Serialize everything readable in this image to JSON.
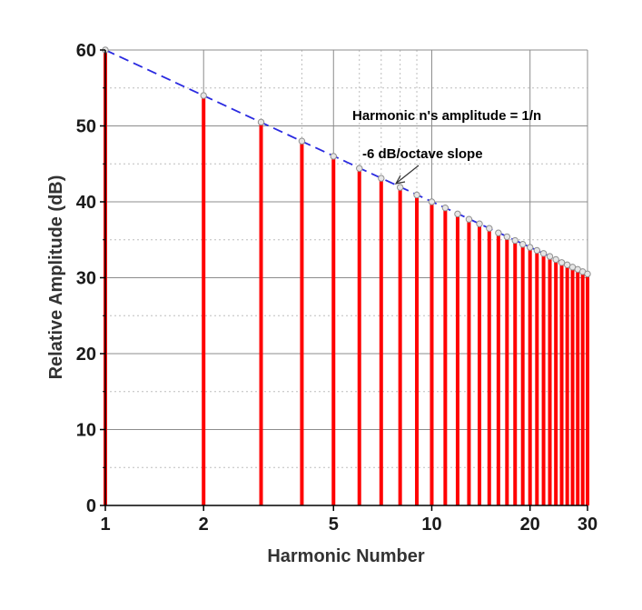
{
  "chart_data": {
    "type": "bar",
    "subtype": "stem",
    "x_scale": "log",
    "x": [
      1,
      2,
      3,
      4,
      5,
      6,
      7,
      8,
      9,
      10,
      11,
      12,
      13,
      14,
      15,
      16,
      17,
      18,
      19,
      20,
      21,
      22,
      23,
      24,
      25,
      26,
      27,
      28,
      29,
      30
    ],
    "values": [
      60.0,
      54.0,
      50.5,
      48.0,
      46.0,
      44.4,
      43.1,
      41.9,
      40.9,
      40.0,
      39.2,
      38.4,
      37.7,
      37.1,
      36.5,
      35.9,
      35.4,
      34.9,
      34.4,
      34.0,
      33.6,
      33.2,
      32.8,
      32.4,
      32.0,
      31.7,
      31.4,
      31.1,
      30.8,
      30.5
    ],
    "xlabel": "Harmonic Number",
    "ylabel": "Relative Amplitude (dB)",
    "xlim": [
      1,
      30
    ],
    "ylim": [
      0,
      60
    ],
    "x_ticks": [
      1,
      2,
      5,
      10,
      20,
      30
    ],
    "x_tick_labels": [
      "1",
      "2",
      "5",
      "10",
      "20",
      "30"
    ],
    "y_ticks": [
      0,
      10,
      20,
      30,
      40,
      50,
      60
    ],
    "y_tick_labels": [
      "0",
      "10",
      "20",
      "30",
      "40",
      "50",
      "60"
    ],
    "grid": true,
    "trend_line": {
      "from": [
        1,
        60
      ],
      "to": [
        30,
        30.5
      ],
      "style": "dashed"
    },
    "annotations": {
      "amplitude": "Harmonic n's amplitude = 1/n",
      "slope": "-6 dB/octave slope"
    },
    "colors": {
      "stem": "#ff0000",
      "trend": "#2a2ae0",
      "marker": "#909090",
      "major_grid": "#8c8c8c",
      "minor_grid": "#bdbdbd"
    }
  }
}
